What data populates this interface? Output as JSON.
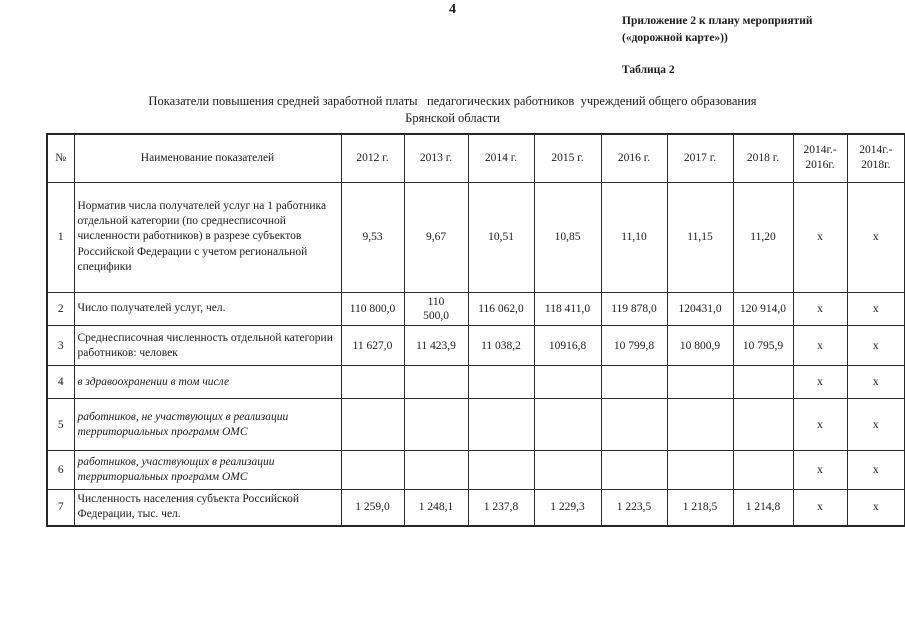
{
  "page": {
    "number": "4",
    "annotation": "Приложение 2 к плану мероприятий\n(«дорожной карте»))",
    "table_label": "Таблица 2",
    "title": "Показатели повышения средней заработной платы   педагогических работников  учреждений общего образования\nБрянской области"
  },
  "table": {
    "headers": [
      "№",
      "Наименование показателей",
      "2012 г.",
      "2013 г.",
      "2014 г.",
      "2015 г.",
      "2016 г.",
      "2017 г.",
      "2018 г.",
      "2014г.-\n2016г.",
      "2014г.-\n2018г."
    ],
    "rows": [
      {
        "num": "1",
        "name": "Норматив числа получателей услуг на 1 работника отдельной категории (по среднесписочной численности работников) в разрезе субъектов Российской Федерации с учетом региональной специфики",
        "italic": false,
        "values": [
          "9,53",
          "9,67",
          "10,51",
          "10,85",
          "11,10",
          "11,15",
          "11,20",
          "x",
          "x"
        ]
      },
      {
        "num": "2",
        "name": "Число получателей услуг, чел.",
        "italic": false,
        "values": [
          "110 800,0",
          "110\n500,0",
          "116 062,0",
          "118 411,0",
          "119 878,0",
          "120431,0",
          "120 914,0",
          "x",
          "x"
        ]
      },
      {
        "num": "3",
        "name": "Среднесписочная численность отдельной категории работников: человек",
        "italic": false,
        "values": [
          "11 627,0",
          "11 423,9",
          "11 038,2",
          "10916,8",
          "10 799,8",
          "10 800,9",
          "10 795,9",
          "x",
          "x"
        ]
      },
      {
        "num": "4",
        "name": "в здравоохранении в том числе",
        "italic": true,
        "values": [
          "",
          "",
          "",
          "",
          "",
          "",
          "",
          "x",
          "x"
        ]
      },
      {
        "num": "5",
        "name": "работников, не участвующих в реализации территориальных программ ОМС",
        "italic": true,
        "values": [
          "",
          "",
          "",
          "",
          "",
          "",
          "",
          "x",
          "x"
        ]
      },
      {
        "num": "6",
        "name": "работников, участвующих в реализации территориальных программ ОМС",
        "italic": true,
        "values": [
          "",
          "",
          "",
          "",
          "",
          "",
          "",
          "x",
          "x"
        ]
      },
      {
        "num": "7",
        "name": "Численность населения субъекта Российской Федерации, тыс. чел.",
        "italic": false,
        "values": [
          "1 259,0",
          "1 248,1",
          "1 237,8",
          "1 229,3",
          "1 223,5",
          "1 218,5",
          "1 214,8",
          "x",
          "x"
        ]
      }
    ]
  },
  "colors": {
    "ink": "#1c1c1c",
    "paper": "#ffffff"
  }
}
